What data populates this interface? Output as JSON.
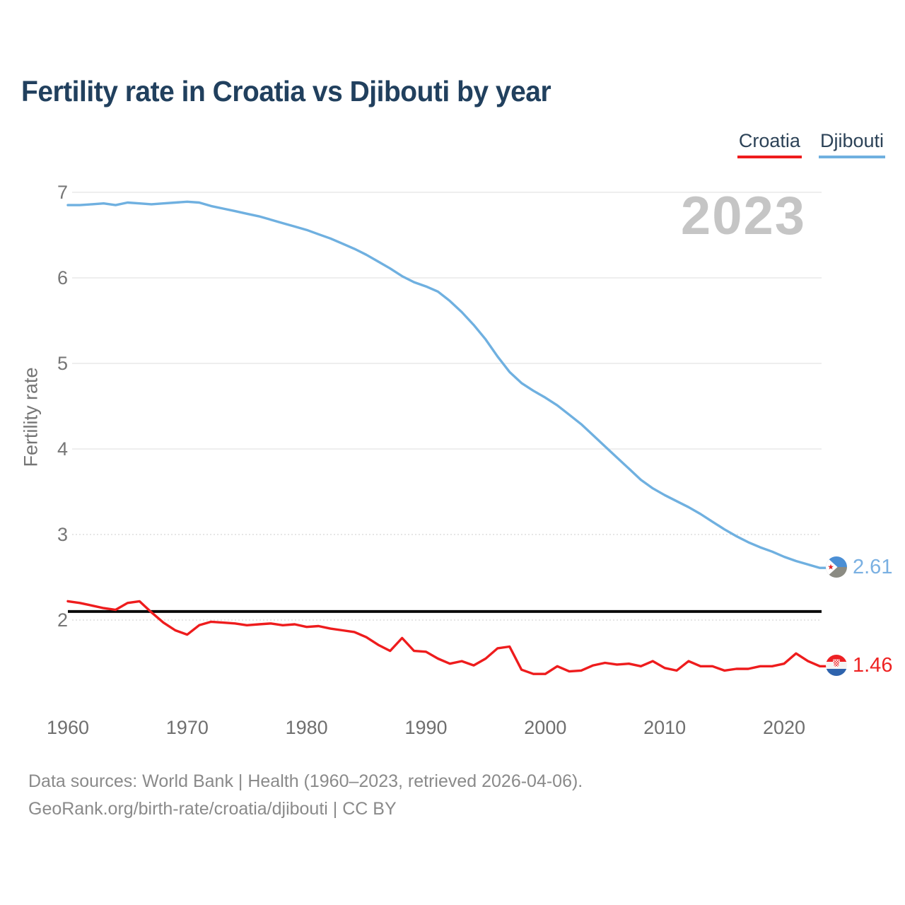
{
  "title": "Fertility rate in Croatia vs Djibouti by year",
  "watermark": "2023",
  "legend": {
    "croatia": {
      "label": "Croatia",
      "color": "#ee1c1d"
    },
    "djibouti": {
      "label": "Djibouti",
      "color": "#6fb0e0"
    }
  },
  "y_axis": {
    "label": "Fertility rate",
    "ticks": [
      7,
      6,
      5,
      4,
      3,
      2
    ],
    "dashed_ticks": [
      3,
      2
    ]
  },
  "x_axis": {
    "ticks": [
      1960,
      1970,
      1980,
      1990,
      2000,
      2010,
      2020
    ]
  },
  "reference_line": {
    "value": 2.1,
    "color": "#0a0a0a"
  },
  "end_labels": {
    "djibouti": {
      "value": "2.61",
      "color": "#7ab0e2",
      "flag_icon": "djibouti-flag"
    },
    "croatia": {
      "value": "1.46",
      "color": "#ee2222",
      "flag_icon": "croatia-flag"
    }
  },
  "footer": {
    "line1": "Data sources: World Bank | Health (1960–2023, retrieved 2026-04-06).",
    "line2": "GeoRank.org/birth-rate/croatia/djibouti | CC BY"
  },
  "chart_data": {
    "type": "line",
    "title": "Fertility rate in Croatia vs Djibouti by year",
    "xlabel": "",
    "ylabel": "Fertility rate",
    "ylim": [
      2,
      7
    ],
    "grid": true,
    "legend_position": "top-right",
    "x": [
      1960,
      1961,
      1962,
      1963,
      1964,
      1965,
      1966,
      1967,
      1968,
      1969,
      1970,
      1971,
      1972,
      1973,
      1974,
      1975,
      1976,
      1977,
      1978,
      1979,
      1980,
      1981,
      1982,
      1983,
      1984,
      1985,
      1986,
      1987,
      1988,
      1989,
      1990,
      1991,
      1992,
      1993,
      1994,
      1995,
      1996,
      1997,
      1998,
      1999,
      2000,
      2001,
      2002,
      2003,
      2004,
      2005,
      2006,
      2007,
      2008,
      2009,
      2010,
      2011,
      2012,
      2013,
      2014,
      2015,
      2016,
      2017,
      2018,
      2019,
      2020,
      2021,
      2022,
      2023
    ],
    "series": [
      {
        "name": "Croatia",
        "color": "#ee1c1d",
        "values": [
          2.22,
          2.2,
          2.17,
          2.14,
          2.12,
          2.2,
          2.22,
          2.09,
          1.97,
          1.88,
          1.83,
          1.94,
          1.98,
          1.97,
          1.96,
          1.94,
          1.95,
          1.96,
          1.94,
          1.95,
          1.92,
          1.93,
          1.9,
          1.88,
          1.86,
          1.8,
          1.71,
          1.64,
          1.79,
          1.64,
          1.63,
          1.55,
          1.49,
          1.52,
          1.47,
          1.55,
          1.67,
          1.69,
          1.42,
          1.37,
          1.37,
          1.46,
          1.4,
          1.41,
          1.47,
          1.5,
          1.48,
          1.49,
          1.46,
          1.52,
          1.44,
          1.41,
          1.52,
          1.46,
          1.46,
          1.41,
          1.43,
          1.43,
          1.46,
          1.46,
          1.49,
          1.61,
          1.52,
          1.46
        ]
      },
      {
        "name": "Djibouti",
        "color": "#6fb0e0",
        "values": [
          6.85,
          6.85,
          6.86,
          6.87,
          6.85,
          6.88,
          6.87,
          6.86,
          6.87,
          6.88,
          6.89,
          6.88,
          6.84,
          6.81,
          6.78,
          6.75,
          6.72,
          6.68,
          6.64,
          6.6,
          6.56,
          6.51,
          6.46,
          6.4,
          6.34,
          6.27,
          6.19,
          6.11,
          6.02,
          5.95,
          5.9,
          5.84,
          5.73,
          5.6,
          5.45,
          5.28,
          5.08,
          4.9,
          4.77,
          4.68,
          4.6,
          4.51,
          4.4,
          4.29,
          4.16,
          4.03,
          3.9,
          3.77,
          3.64,
          3.54,
          3.46,
          3.39,
          3.32,
          3.24,
          3.15,
          3.06,
          2.98,
          2.91,
          2.85,
          2.8,
          2.74,
          2.69,
          2.65,
          2.61
        ]
      }
    ]
  }
}
